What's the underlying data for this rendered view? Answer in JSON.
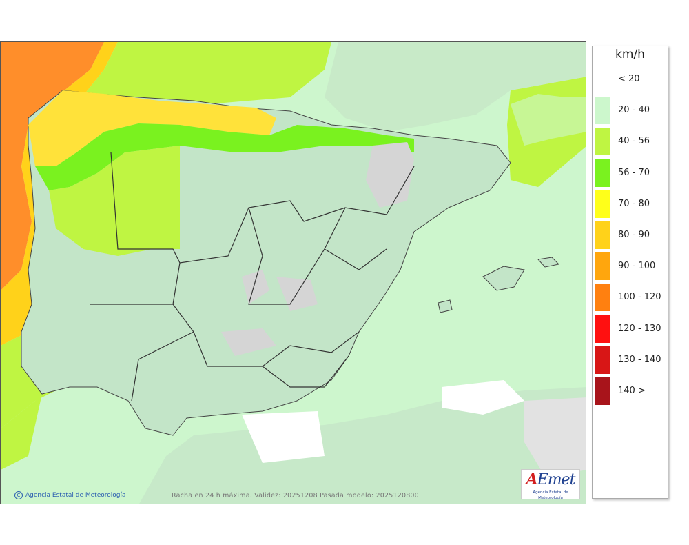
{
  "map": {
    "credit": "Agencia Estatal de Meteorología",
    "caption": "Racha en 24 h máxima. Validez: 20251208 Pasada modelo: 2025120800",
    "logo_name": "AEmet",
    "logo_subtitle": "Agencia Estatal de Meteorología",
    "colors": {
      "sea": "#cdf6cd",
      "land": "#c3e5c8",
      "bright_green": "#9ce67a",
      "border": "#222222"
    }
  },
  "legend": {
    "unit": "km/h",
    "items": [
      {
        "label": "< 20",
        "color": "#ffffff"
      },
      {
        "label": "20 - 40",
        "color": "#ccf7cc"
      },
      {
        "label": "40 - 56",
        "color": "#bff542"
      },
      {
        "label": "56 - 70",
        "color": "#7af21f"
      },
      {
        "label": "70 - 80",
        "color": "#ffff1a"
      },
      {
        "label": "80 - 90",
        "color": "#ffd21a"
      },
      {
        "label": "90 - 100",
        "color": "#ffa60d"
      },
      {
        "label": "100 - 120",
        "color": "#ff8010"
      },
      {
        "label": "120 - 130",
        "color": "#ff1010"
      },
      {
        "label": "130 - 140",
        "color": "#d81616"
      },
      {
        "label": "140 >",
        "color": "#a8141b"
      }
    ]
  }
}
